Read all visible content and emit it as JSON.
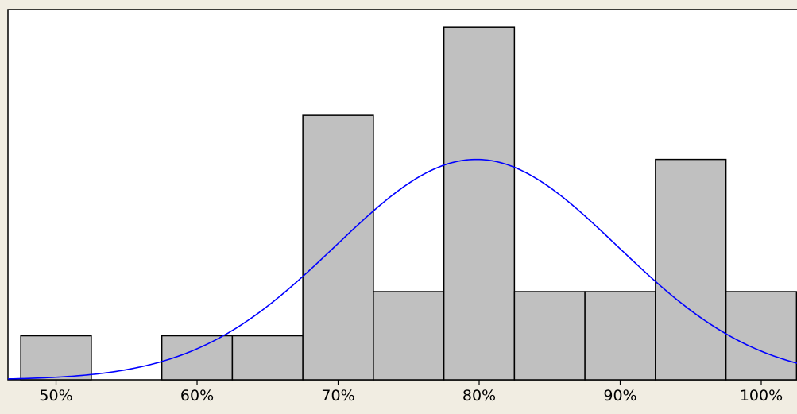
{
  "chart_data": {
    "type": "bar",
    "title": "",
    "xlabel": "",
    "ylabel": "",
    "bins": [
      {
        "x0": 0.475,
        "x1": 0.525,
        "count": 1
      },
      {
        "x0": 0.525,
        "x1": 0.575,
        "count": 0
      },
      {
        "x0": 0.575,
        "x1": 0.625,
        "count": 1
      },
      {
        "x0": 0.625,
        "x1": 0.675,
        "count": 1
      },
      {
        "x0": 0.675,
        "x1": 0.725,
        "count": 6
      },
      {
        "x0": 0.725,
        "x1": 0.775,
        "count": 2
      },
      {
        "x0": 0.775,
        "x1": 0.825,
        "count": 8
      },
      {
        "x0": 0.825,
        "x1": 0.875,
        "count": 2
      },
      {
        "x0": 0.875,
        "x1": 0.925,
        "count": 2
      },
      {
        "x0": 0.925,
        "x1": 0.975,
        "count": 5
      },
      {
        "x0": 0.975,
        "x1": 1.025,
        "count": 2
      }
    ],
    "xticks": [
      {
        "value": 0.5,
        "label": "50%"
      },
      {
        "value": 0.6,
        "label": "60%"
      },
      {
        "value": 0.7,
        "label": "70%"
      },
      {
        "value": 0.8,
        "label": "80%"
      },
      {
        "value": 0.9,
        "label": "90%"
      },
      {
        "value": 1.0,
        "label": "100%"
      }
    ],
    "xlim": [
      0.4659,
      1.0293
    ],
    "ylim": [
      0,
      8.4
    ],
    "fit_curve": {
      "type": "normal",
      "mean": 0.798,
      "sd": 0.1,
      "peak_count": 5.0
    },
    "y_axis_shown": false,
    "grid": false,
    "legend": "none",
    "colors": {
      "bar_fill": "#c0c0c0",
      "bar_edge": "#000000",
      "curve": "#0000ff",
      "plot_background": "#ffffff",
      "page_background": "#f1ede2"
    }
  }
}
